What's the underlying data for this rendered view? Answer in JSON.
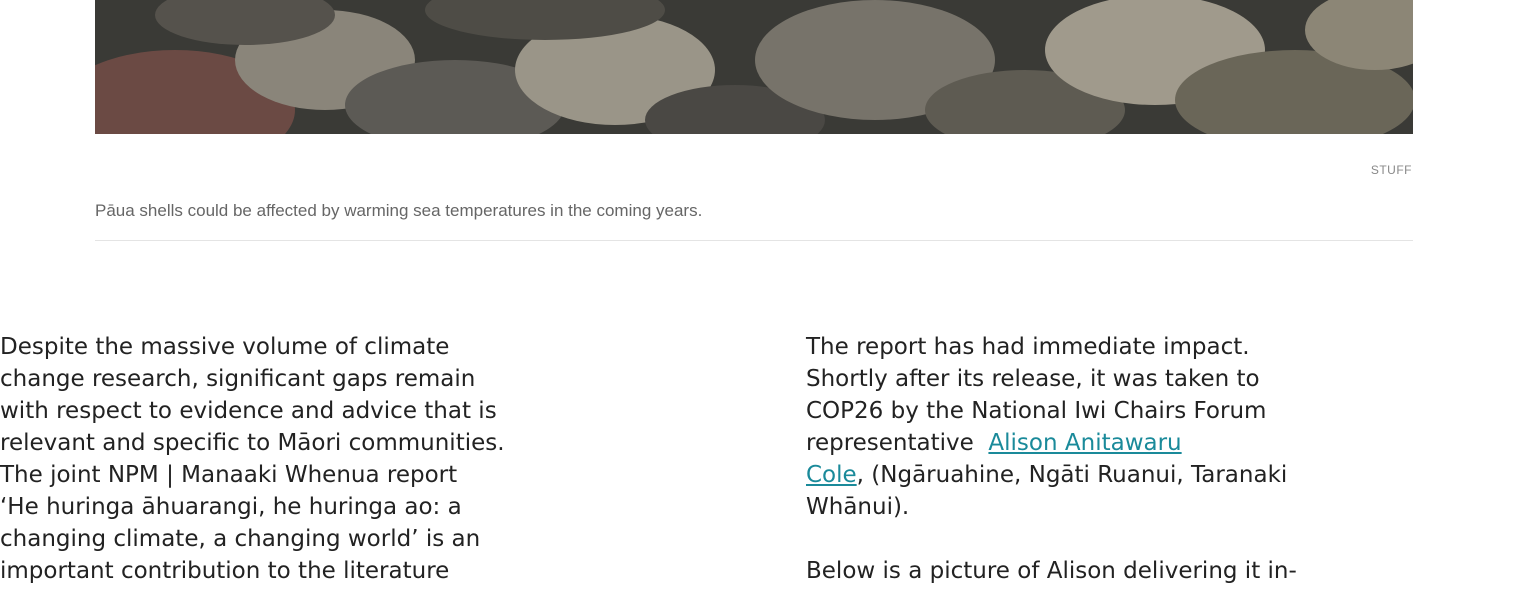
{
  "figure": {
    "credit": "STUFF",
    "caption": "Pāua shells could be affected by warming sea temperatures in the coming years."
  },
  "left_column": {
    "lines": [
      "Despite the massive volume of climate",
      "change research, significant gaps remain",
      "with respect to evidence and advice that is",
      "relevant and specific to Māori communities.",
      "The joint NPM | Manaaki Whenua report",
      "‘He huringa āhuarangi, he huringa ao: a",
      "changing climate, a changing world’ is an",
      "important contribution to the literature"
    ]
  },
  "right_column": {
    "paragraph_1": {
      "line_1": "The report has had immediate impact.",
      "line_2": "Shortly after its release, it was taken to",
      "line_3": "COP26 by the National Iwi Chairs Forum",
      "line_4_text": "representative",
      "link_part_1": "Alison Anitawaru",
      "link_part_2": "Cole",
      "line_5_rest": ", (Ngāruahine, Ngāti Ruanui, Taranaki",
      "line_6": "Whānui)."
    },
    "paragraph_2": {
      "line_1": "Below is a picture of Alison delivering it in-"
    }
  }
}
